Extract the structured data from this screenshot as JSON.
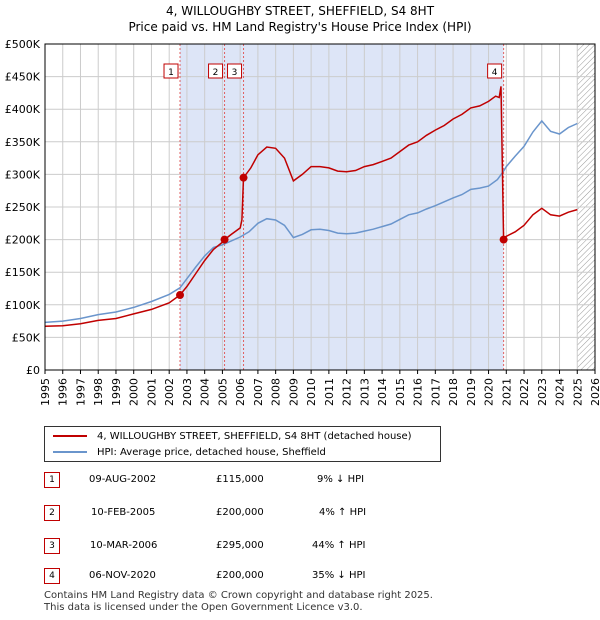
{
  "title_line1": "4, WILLOUGHBY STREET, SHEFFIELD, S4 8HT",
  "title_line2": "Price paid vs. HM Land Registry's House Price Index (HPI)",
  "legend": {
    "property": "4, WILLOUGHBY STREET, SHEFFIELD, S4 8HT (detached house)",
    "hpi": "HPI: Average price, detached house, Sheffield"
  },
  "colors": {
    "property_line": "#c00000",
    "hpi_line": "#6a95cc",
    "shade": "#dde5f7",
    "grid": "#cccccc",
    "marker_line": "#e06060"
  },
  "sales": [
    {
      "num": "1",
      "date": "09-AUG-2002",
      "price": "£115,000",
      "hpi": "9% ↓ HPI"
    },
    {
      "num": "2",
      "date": "10-FEB-2005",
      "price": "£200,000",
      "hpi": "4% ↑ HPI"
    },
    {
      "num": "3",
      "date": "10-MAR-2006",
      "price": "£295,000",
      "hpi": "44% ↑ HPI"
    },
    {
      "num": "4",
      "date": "06-NOV-2020",
      "price": "£200,000",
      "hpi": "35% ↓ HPI"
    }
  ],
  "footer_line1": "Contains HM Land Registry data © Crown copyright and database right 2025.",
  "footer_line2": "This data is licensed under the Open Government Licence v3.0.",
  "chart_data": {
    "type": "line",
    "title": "Price paid vs. HM Land Registry's House Price Index (HPI)",
    "xlabel": "",
    "ylabel": "",
    "xlim": [
      1995,
      2026
    ],
    "ylim": [
      0,
      500000
    ],
    "y_ticks": [
      0,
      50000,
      100000,
      150000,
      200000,
      250000,
      300000,
      350000,
      400000,
      450000,
      500000
    ],
    "y_tick_labels": [
      "£0",
      "£50K",
      "£100K",
      "£150K",
      "£200K",
      "£250K",
      "£300K",
      "£350K",
      "£400K",
      "£450K",
      "£500K"
    ],
    "x_ticks": [
      1995,
      1996,
      1997,
      1998,
      1999,
      2000,
      2001,
      2002,
      2003,
      2004,
      2005,
      2006,
      2007,
      2008,
      2009,
      2010,
      2011,
      2012,
      2013,
      2014,
      2015,
      2016,
      2017,
      2018,
      2019,
      2020,
      2021,
      2022,
      2023,
      2024,
      2025,
      2026
    ],
    "shaded_periods": [
      [
        2002.61,
        2020.85
      ]
    ],
    "hatched_after": 2025.0,
    "grid": true,
    "series": [
      {
        "name": "4, WILLOUGHBY STREET, SHEFFIELD, S4 8HT (detached house)",
        "points": [
          [
            1995.0,
            67000
          ],
          [
            1996.0,
            68000
          ],
          [
            1997.0,
            71000
          ],
          [
            1998.0,
            76000
          ],
          [
            1999.0,
            79000
          ],
          [
            2000.0,
            86000
          ],
          [
            2001.0,
            93000
          ],
          [
            2002.0,
            103000
          ],
          [
            2002.61,
            115000
          ],
          [
            2003.0,
            128000
          ],
          [
            2003.5,
            148000
          ],
          [
            2004.0,
            168000
          ],
          [
            2004.5,
            185000
          ],
          [
            2005.0,
            196000
          ],
          [
            2005.12,
            200000
          ],
          [
            2005.5,
            208000
          ],
          [
            2006.0,
            218000
          ],
          [
            2006.1,
            230000
          ],
          [
            2006.19,
            295000
          ],
          [
            2006.6,
            310000
          ],
          [
            2007.0,
            330000
          ],
          [
            2007.5,
            342000
          ],
          [
            2008.0,
            340000
          ],
          [
            2008.5,
            325000
          ],
          [
            2009.0,
            290000
          ],
          [
            2009.5,
            300000
          ],
          [
            2010.0,
            312000
          ],
          [
            2010.5,
            312000
          ],
          [
            2011.0,
            310000
          ],
          [
            2011.5,
            305000
          ],
          [
            2012.0,
            304000
          ],
          [
            2012.5,
            306000
          ],
          [
            2013.0,
            312000
          ],
          [
            2013.5,
            315000
          ],
          [
            2014.0,
            320000
          ],
          [
            2014.5,
            325000
          ],
          [
            2015.0,
            335000
          ],
          [
            2015.5,
            345000
          ],
          [
            2016.0,
            350000
          ],
          [
            2016.5,
            360000
          ],
          [
            2017.0,
            368000
          ],
          [
            2017.5,
            375000
          ],
          [
            2018.0,
            385000
          ],
          [
            2018.5,
            392000
          ],
          [
            2019.0,
            402000
          ],
          [
            2019.5,
            405000
          ],
          [
            2020.0,
            412000
          ],
          [
            2020.4,
            420000
          ],
          [
            2020.6,
            418000
          ],
          [
            2020.7,
            435000
          ],
          [
            2020.85,
            200000
          ],
          [
            2021.0,
            205000
          ],
          [
            2021.5,
            212000
          ],
          [
            2022.0,
            222000
          ],
          [
            2022.5,
            238000
          ],
          [
            2023.0,
            248000
          ],
          [
            2023.5,
            238000
          ],
          [
            2024.0,
            236000
          ],
          [
            2024.5,
            242000
          ],
          [
            2025.0,
            246000
          ]
        ]
      },
      {
        "name": "HPI: Average price, detached house, Sheffield",
        "points": [
          [
            1995.0,
            73000
          ],
          [
            1996.0,
            75000
          ],
          [
            1997.0,
            79000
          ],
          [
            1998.0,
            85000
          ],
          [
            1999.0,
            89000
          ],
          [
            2000.0,
            96000
          ],
          [
            2001.0,
            105000
          ],
          [
            2002.0,
            116000
          ],
          [
            2002.61,
            126000
          ],
          [
            2003.0,
            140000
          ],
          [
            2003.5,
            158000
          ],
          [
            2004.0,
            175000
          ],
          [
            2004.5,
            188000
          ],
          [
            2005.0,
            192000
          ],
          [
            2005.5,
            198000
          ],
          [
            2006.0,
            204000
          ],
          [
            2006.5,
            212000
          ],
          [
            2007.0,
            225000
          ],
          [
            2007.5,
            232000
          ],
          [
            2008.0,
            230000
          ],
          [
            2008.5,
            222000
          ],
          [
            2009.0,
            203000
          ],
          [
            2009.5,
            208000
          ],
          [
            2010.0,
            215000
          ],
          [
            2010.5,
            216000
          ],
          [
            2011.0,
            214000
          ],
          [
            2011.5,
            210000
          ],
          [
            2012.0,
            209000
          ],
          [
            2012.5,
            210000
          ],
          [
            2013.0,
            213000
          ],
          [
            2013.5,
            216000
          ],
          [
            2014.0,
            220000
          ],
          [
            2014.5,
            224000
          ],
          [
            2015.0,
            231000
          ],
          [
            2015.5,
            238000
          ],
          [
            2016.0,
            241000
          ],
          [
            2016.5,
            247000
          ],
          [
            2017.0,
            252000
          ],
          [
            2017.5,
            258000
          ],
          [
            2018.0,
            264000
          ],
          [
            2018.5,
            269000
          ],
          [
            2019.0,
            277000
          ],
          [
            2019.5,
            279000
          ],
          [
            2020.0,
            282000
          ],
          [
            2020.5,
            292000
          ],
          [
            2020.85,
            305000
          ],
          [
            2021.0,
            312000
          ],
          [
            2021.5,
            328000
          ],
          [
            2022.0,
            343000
          ],
          [
            2022.5,
            365000
          ],
          [
            2023.0,
            382000
          ],
          [
            2023.5,
            366000
          ],
          [
            2024.0,
            362000
          ],
          [
            2024.5,
            372000
          ],
          [
            2025.0,
            378000
          ]
        ]
      }
    ],
    "sale_markers": [
      {
        "label": "1",
        "x": 2002.61,
        "y": 115000
      },
      {
        "label": "2",
        "x": 2005.12,
        "y": 200000
      },
      {
        "label": "3",
        "x": 2006.19,
        "y": 295000
      },
      {
        "label": "4",
        "x": 2020.85,
        "y": 200000
      }
    ]
  }
}
